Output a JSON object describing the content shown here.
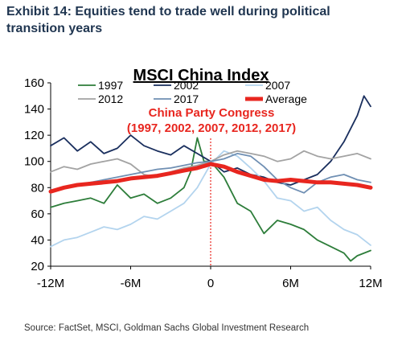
{
  "exhibit": {
    "title": "Exhibit 14: Equities tend to trade well during political transition years"
  },
  "source": "Source: FactSet, MSCI, Goldman Sachs Global Investment Research",
  "chart_data": {
    "type": "line",
    "title": "MSCI China Index",
    "annotation": {
      "line1": "China Party Congress",
      "line2": "(1997, 2002, 2007, 2012, 2017)",
      "color": "#e8261f"
    },
    "x_tick_labels": [
      "-12M",
      "-6M",
      "0",
      "6M",
      "12M"
    ],
    "x_ticks": [
      -12,
      -6,
      0,
      6,
      12
    ],
    "xlim": [
      -12,
      12
    ],
    "ylim": [
      20,
      160
    ],
    "y_ticks": [
      20,
      40,
      60,
      80,
      100,
      120,
      140,
      160
    ],
    "vline_x": 0,
    "legend": {
      "position": "top",
      "columns": 3
    },
    "series": [
      {
        "name": "1997",
        "color": "#2d7d3a",
        "width": 1.8,
        "x": [
          -12,
          -11,
          -10,
          -9,
          -8,
          -7,
          -6,
          -5,
          -4,
          -3,
          -2,
          -1.5,
          -1,
          -0.5,
          0,
          1,
          2,
          3,
          4,
          5,
          6,
          7,
          8,
          9,
          10,
          10.5,
          11,
          12
        ],
        "y": [
          65,
          68,
          70,
          72,
          68,
          82,
          72,
          75,
          68,
          72,
          80,
          92,
          118,
          100,
          100,
          88,
          68,
          62,
          45,
          55,
          52,
          48,
          40,
          35,
          30,
          24,
          28,
          32
        ]
      },
      {
        "name": "2002",
        "color": "#1a2f5e",
        "width": 1.8,
        "x": [
          -12,
          -11,
          -10,
          -9,
          -8,
          -7,
          -6,
          -5,
          -4,
          -3,
          -2,
          -1,
          0,
          1,
          2,
          3,
          4,
          5,
          6,
          7,
          8,
          9,
          10,
          11,
          11.5,
          12
        ],
        "y": [
          112,
          118,
          108,
          115,
          106,
          110,
          120,
          112,
          108,
          105,
          112,
          106,
          100,
          92,
          95,
          90,
          88,
          84,
          82,
          86,
          90,
          100,
          115,
          135,
          150,
          142
        ]
      },
      {
        "name": "2007",
        "color": "#b3d4ee",
        "width": 1.8,
        "x": [
          -12,
          -11,
          -10,
          -9,
          -8,
          -7,
          -6,
          -5,
          -4,
          -3,
          -2,
          -1,
          0,
          1,
          2,
          3,
          4,
          5,
          6,
          7,
          8,
          9,
          10,
          11,
          12
        ],
        "y": [
          35,
          40,
          42,
          46,
          50,
          48,
          52,
          58,
          56,
          62,
          68,
          80,
          98,
          108,
          104,
          95,
          85,
          72,
          70,
          62,
          65,
          55,
          48,
          44,
          36
        ]
      },
      {
        "name": "2012",
        "color": "#a3a3a3",
        "width": 1.8,
        "x": [
          -12,
          -11,
          -10,
          -9,
          -8,
          -7,
          -6,
          -5,
          -4,
          -3,
          -2,
          -1,
          0,
          1,
          2,
          3,
          4,
          5,
          6,
          7,
          8,
          9,
          10,
          11,
          12
        ],
        "y": [
          92,
          96,
          94,
          98,
          100,
          102,
          98,
          90,
          88,
          92,
          95,
          97,
          100,
          105,
          108,
          106,
          104,
          100,
          102,
          108,
          104,
          102,
          104,
          106,
          102
        ]
      },
      {
        "name": "2017",
        "color": "#6f8fb3",
        "width": 1.8,
        "x": [
          -12,
          -11,
          -10,
          -9,
          -8,
          -7,
          -6,
          -5,
          -4,
          -3,
          -2,
          -1,
          0,
          1,
          2,
          3,
          4,
          5,
          6,
          7,
          8,
          9,
          10,
          11,
          12
        ],
        "y": [
          76,
          80,
          82,
          84,
          86,
          88,
          90,
          92,
          94,
          95,
          97,
          99,
          100,
          102,
          106,
          104,
          96,
          86,
          80,
          76,
          84,
          88,
          90,
          86,
          84
        ]
      },
      {
        "name": "Average",
        "color": "#e8261f",
        "width": 5,
        "x": [
          -12,
          -11,
          -10,
          -9,
          -8,
          -7,
          -6,
          -5,
          -4,
          -3,
          -2,
          -1,
          0,
          1,
          2,
          3,
          4,
          5,
          6,
          7,
          8,
          9,
          10,
          11,
          12
        ],
        "y": [
          77,
          80,
          82,
          83,
          84,
          85,
          87,
          88,
          89,
          91,
          93,
          95,
          98,
          96,
          92,
          89,
          86,
          85,
          86,
          85,
          84,
          84,
          83,
          82,
          80
        ]
      }
    ]
  }
}
